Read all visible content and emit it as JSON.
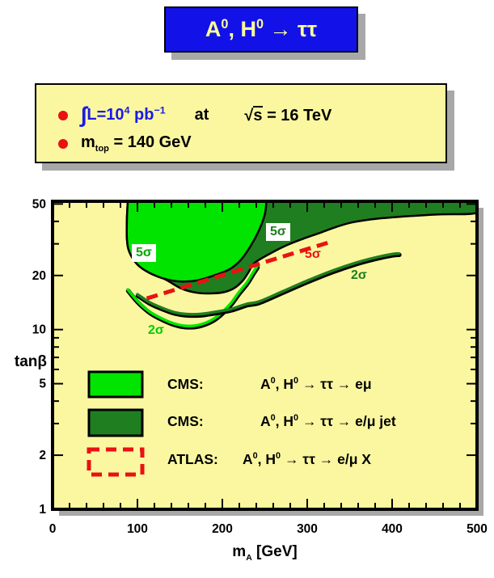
{
  "title_box": {
    "part1": "A",
    "sup1": "0",
    "part2": ", H",
    "sup2": "0",
    "part3": " → ττ"
  },
  "infobox": {
    "line1": {
      "integral": "∫",
      "lum": "L=10",
      "lum_exp": "4",
      "unit": " pb",
      "unit_exp": "−1",
      "at": "at",
      "sqrt": "√",
      "s": "s",
      "energy": " = 16 TeV"
    },
    "line2": {
      "m": "m",
      "sub": "top",
      "rest": " = 140 GeV"
    }
  },
  "legend": {
    "items": [
      {
        "head": "CMS:",
        "a": "A",
        "s1": "0",
        "h": ", H",
        "s2": "0",
        "rest": " → ττ → eμ"
      },
      {
        "head": "CMS:",
        "a": "A",
        "s1": "0",
        "h": ", H",
        "s2": "0",
        "rest": " → ττ → e/μ jet"
      },
      {
        "head": "ATLAS:",
        "a": "A",
        "s1": "0",
        "h": ", H",
        "s2": "0",
        "rest": " → ττ → e/μ X"
      }
    ]
  },
  "chart_data": {
    "type": "area",
    "title": "A0, H0 → ττ",
    "xlabel_parts": {
      "m": "m",
      "sub": "A",
      "rest": " [GeV]"
    },
    "ylabel": "tanβ",
    "xlim": [
      0,
      500
    ],
    "ylim": [
      1,
      50
    ],
    "yscale": "log",
    "grid": false,
    "x_major_ticks": [
      0,
      100,
      200,
      300,
      400,
      500
    ],
    "x_tick_labels": [
      "0",
      "100",
      "200",
      "300",
      "400",
      "500"
    ],
    "x_minor_tick_step": 20,
    "y_ticks": [
      1,
      2,
      3,
      4,
      5,
      6,
      7,
      8,
      9,
      10,
      20,
      30,
      40,
      50
    ],
    "y_labeled_ticks": [
      1,
      2,
      5,
      10,
      20,
      50
    ],
    "y_tick_labels": [
      "1",
      "2",
      "5",
      "10",
      "20",
      "50"
    ],
    "colors": {
      "plot_bg": "#fbf7a0",
      "light_green": "#00e400",
      "dark_green": "#1f7e1f",
      "red": "#e81212",
      "shadow": "#a8a8a8",
      "frame": "#000000"
    },
    "regions": [
      {
        "name": "cms-emujet-5sigma-region",
        "color_key": "dark_green",
        "points": [
          [
            88.6,
            51.6
          ],
          [
            87.6,
            41.5
          ],
          [
            87.6,
            32
          ],
          [
            90.5,
            27
          ],
          [
            100,
            23
          ],
          [
            114,
            20.7
          ],
          [
            133,
            19
          ],
          [
            152,
            16.9
          ],
          [
            171,
            16
          ],
          [
            189,
            15.9
          ],
          [
            203,
            16.2
          ],
          [
            214,
            17
          ],
          [
            224,
            18.7
          ],
          [
            231,
            20.9
          ],
          [
            238,
            23.5
          ],
          [
            257,
            26.6
          ],
          [
            276,
            29.5
          ],
          [
            295,
            32
          ],
          [
            314,
            34.4
          ],
          [
            333,
            37.1
          ],
          [
            352,
            39.4
          ],
          [
            376,
            41.1
          ],
          [
            405,
            42.3
          ],
          [
            452,
            43.7
          ],
          [
            500,
            44.6
          ],
          [
            500,
            51.6
          ]
        ]
      },
      {
        "name": "cms-emu-5sigma-region",
        "color_key": "light_green",
        "points": [
          [
            88.6,
            51.6
          ],
          [
            87.6,
            41.5
          ],
          [
            87.6,
            32
          ],
          [
            90.5,
            27
          ],
          [
            100,
            23
          ],
          [
            114,
            20.7
          ],
          [
            133,
            19.1
          ],
          [
            152,
            18.5
          ],
          [
            171,
            18.8
          ],
          [
            190,
            20
          ],
          [
            208,
            21.6
          ],
          [
            221,
            24.2
          ],
          [
            233,
            29
          ],
          [
            243,
            35.5
          ],
          [
            250,
            43.7
          ],
          [
            252,
            51.6
          ]
        ]
      }
    ],
    "curves": [
      {
        "name": "cms-emu-2sigma-contour",
        "color_key": "light_green",
        "dashed": false,
        "points": [
          [
            88.6,
            16.7
          ],
          [
            100,
            14.4
          ],
          [
            114,
            12.6
          ],
          [
            129,
            11.5
          ],
          [
            143,
            10.8
          ],
          [
            155,
            10.5
          ],
          [
            167,
            10.5
          ],
          [
            178,
            10.8
          ],
          [
            189,
            11.4
          ],
          [
            199,
            12.4
          ],
          [
            210,
            14
          ],
          [
            219,
            16
          ],
          [
            229,
            18.3
          ],
          [
            236,
            20.7
          ],
          [
            241,
            22.5
          ]
        ]
      },
      {
        "name": "cms-emujet-2sigma-contour",
        "color_key": "dark_green",
        "dashed": false,
        "points": [
          [
            100,
            15.7
          ],
          [
            114,
            14.2
          ],
          [
            129,
            13.2
          ],
          [
            143,
            12.5
          ],
          [
            157,
            12.2
          ],
          [
            174,
            12.2
          ],
          [
            190,
            12.5
          ],
          [
            210,
            13
          ],
          [
            229,
            13.9
          ],
          [
            243,
            14.3
          ],
          [
            271,
            16.3
          ],
          [
            300,
            18.7
          ],
          [
            329,
            21.2
          ],
          [
            357,
            23.5
          ],
          [
            381,
            25.2
          ],
          [
            400,
            26.3
          ],
          [
            408,
            26.5
          ]
        ]
      },
      {
        "name": "atlas-5sigma-line",
        "color_key": "red",
        "dashed": true,
        "points": [
          [
            111,
            14.9
          ],
          [
            324,
            30.4
          ]
        ]
      }
    ],
    "annotations": [
      {
        "text": "5σ",
        "approx_xy": [
          110,
          26
        ]
      },
      {
        "text": "5σ",
        "approx_xy": [
          269,
          34
        ]
      },
      {
        "text": "5σ",
        "approx_xy": [
          313,
          25
        ]
      },
      {
        "text": "2σ",
        "approx_xy": [
          128,
          9.7
        ]
      },
      {
        "text": "2σ",
        "approx_xy": [
          366,
          19.7
        ]
      }
    ]
  }
}
